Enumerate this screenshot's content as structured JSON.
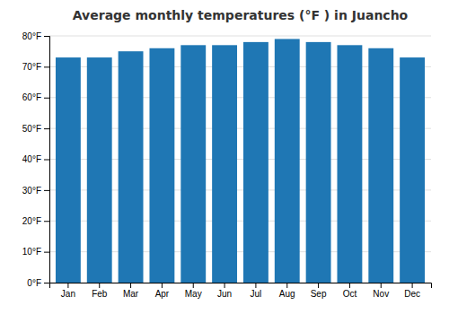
{
  "chart_data": {
    "type": "bar",
    "title": "Average monthly temperatures (°F ) in Juancho",
    "categories": [
      "Jan",
      "Feb",
      "Mar",
      "Apr",
      "May",
      "Jun",
      "Jul",
      "Aug",
      "Sep",
      "Oct",
      "Nov",
      "Dec"
    ],
    "values": [
      73,
      73,
      75,
      76,
      77,
      77,
      78,
      79,
      78,
      77,
      76,
      73
    ],
    "ylim": [
      0,
      80
    ],
    "yticks": [
      {
        "value": 0,
        "label": "0°F"
      },
      {
        "value": 10,
        "label": "10°F"
      },
      {
        "value": 20,
        "label": "20°F"
      },
      {
        "value": 30,
        "label": "30°F"
      },
      {
        "value": 40,
        "label": "40°F"
      },
      {
        "value": 50,
        "label": "50°F"
      },
      {
        "value": 60,
        "label": "60°F"
      },
      {
        "value": 70,
        "label": "70°F"
      },
      {
        "value": 80,
        "label": "80°F"
      }
    ],
    "grid": true
  }
}
